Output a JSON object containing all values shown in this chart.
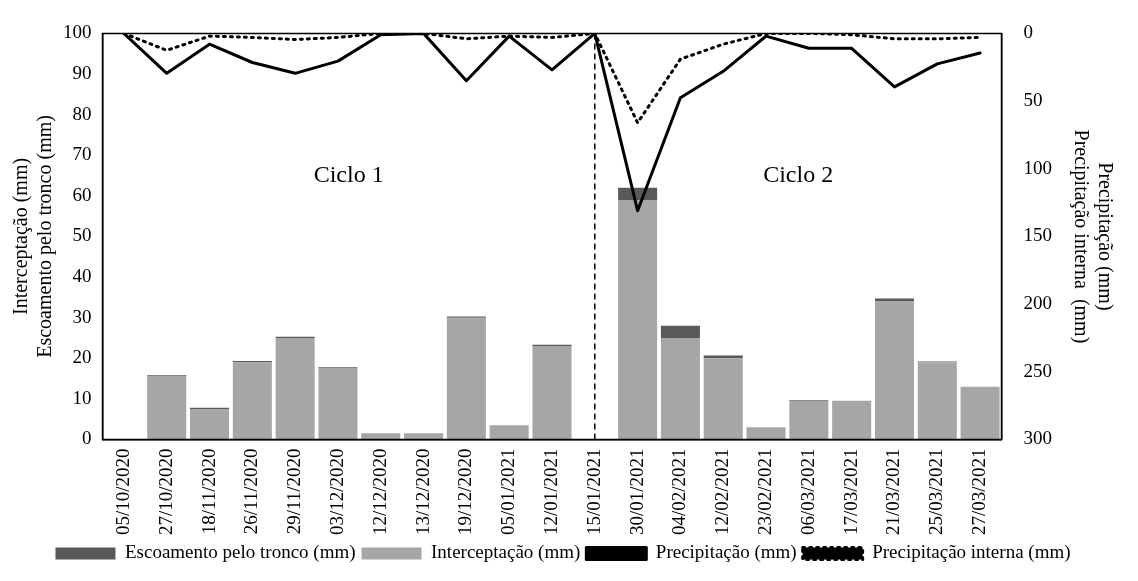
{
  "chart_data": {
    "type": "bar",
    "stacked": true,
    "categories": [
      "05/10/2020",
      "27/10/2020",
      "18/11/2020",
      "26/11/2020",
      "29/11/2020",
      "03/12/2020",
      "12/12/2020",
      "13/12/2020",
      "19/12/2020",
      "05/01/2021",
      "12/01/2021",
      "15/01/2021",
      "30/01/2021",
      "04/02/2021",
      "12/02/2021",
      "23/02/2021",
      "06/03/2021",
      "17/03/2021",
      "21/03/2021",
      "25/03/2021",
      "27/03/2021"
    ],
    "series": [
      {
        "name": "Interceptação (mm)",
        "color": "#a6a6a6",
        "values": [
          0,
          15.5,
          7.5,
          19,
          25,
          17.5,
          1.5,
          1.5,
          30,
          3.5,
          23,
          0,
          59,
          25,
          20,
          3,
          9.5,
          9.5,
          34,
          19,
          13
        ]
      },
      {
        "name": "Escoamento pelo tronco (mm)",
        "color": "#595959",
        "values": [
          0,
          0.3,
          0.3,
          0.3,
          0.3,
          0.3,
          0,
          0,
          0.3,
          0,
          0.3,
          0,
          3,
          3,
          0.7,
          0,
          0.2,
          0,
          0.7,
          0.2,
          0
        ]
      },
      {
        "name": "Precipitação (mm)",
        "type": "line",
        "axis": "y2",
        "line_style": "solid",
        "color": "#000000",
        "values": [
          0,
          29.5,
          8,
          21.5,
          29.5,
          20.5,
          1,
          0,
          35,
          2,
          27,
          0,
          131,
          47.5,
          28,
          2,
          11,
          11,
          39.5,
          22.5,
          14.5
        ]
      },
      {
        "name": "Precipitação interna (mm)",
        "type": "line",
        "axis": "y2",
        "line_style": "dotted",
        "color": "#000000",
        "values": [
          0,
          12.5,
          2,
          3,
          4.5,
          3,
          0,
          0,
          4,
          2,
          3,
          0,
          66,
          19,
          8,
          0,
          0,
          1,
          4,
          4,
          3
        ]
      }
    ],
    "ylabel": "Interceptação (mm)\nEscoamento pelo tronco (mm)",
    "y2label": "Precipitação (mm)\nPrecipitação interna  (mm)",
    "ylim": [
      0,
      100
    ],
    "yticks": [
      0,
      10,
      20,
      30,
      40,
      50,
      60,
      70,
      80,
      90,
      100
    ],
    "y2lim": [
      300,
      0
    ],
    "y2ticks": [
      0,
      50,
      100,
      150,
      200,
      250,
      300
    ],
    "ref_lines": [
      {
        "axis": "x",
        "value": "15/01/2021",
        "line_style": "dashed",
        "color": "#000000"
      }
    ],
    "annotations": [
      "Ciclo 1",
      "Ciclo 2"
    ],
    "grid": false,
    "legend": "bottom",
    "marker": "none"
  }
}
